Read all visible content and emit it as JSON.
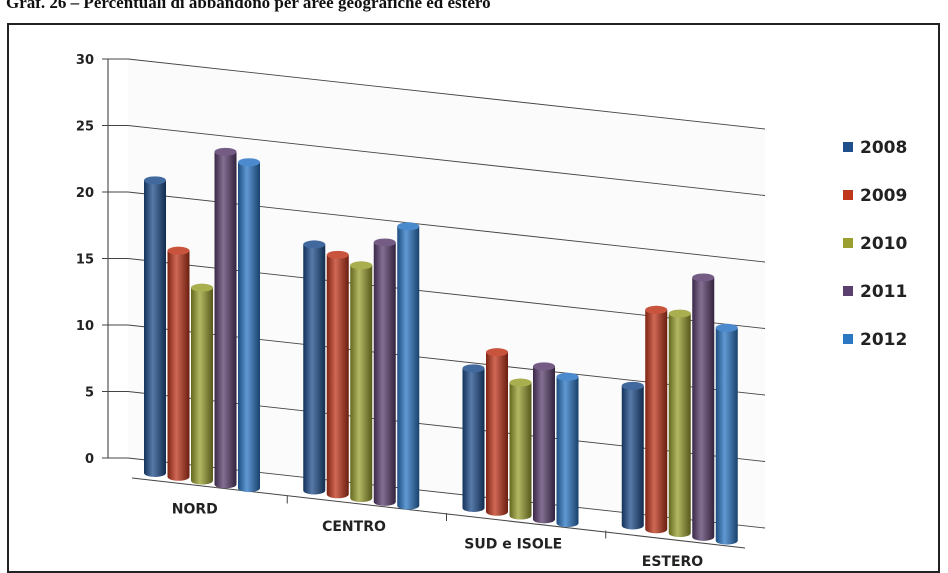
{
  "chart_data": {
    "type": "bar",
    "title": "Graf. 26 – Percentuali di abbandono per aree geografiche ed estero",
    "categories": [
      "NORD",
      "CENTRO",
      "SUD e ISOLE",
      "ESTERO"
    ],
    "series": [
      {
        "name": "2008",
        "color": "#1f4e8c",
        "values": [
          22.0,
          18.5,
          10.5,
          10.5
        ]
      },
      {
        "name": "2009",
        "color": "#c0361c",
        "values": [
          17.0,
          18.0,
          12.0,
          16.5
        ]
      },
      {
        "name": "2010",
        "color": "#9aa030",
        "values": [
          14.5,
          17.5,
          10.0,
          16.5
        ]
      },
      {
        "name": "2011",
        "color": "#5b3f6e",
        "values": [
          25.0,
          19.5,
          11.5,
          19.5
        ]
      },
      {
        "name": "2012",
        "color": "#2b77c4",
        "values": [
          24.5,
          21.0,
          11.0,
          16.0
        ]
      }
    ],
    "yticks": [
      "0",
      "5",
      "10",
      "15",
      "20",
      "25",
      "30"
    ],
    "ylim": [
      0,
      30
    ],
    "grid": true,
    "legend": "right"
  }
}
